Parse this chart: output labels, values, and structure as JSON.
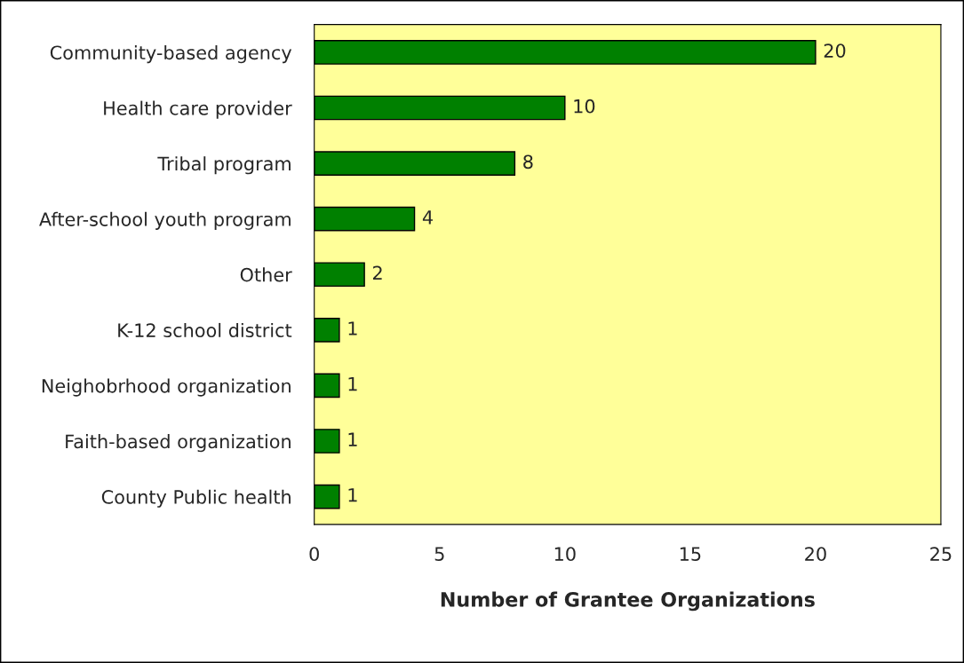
{
  "chart_data": {
    "type": "bar",
    "orientation": "horizontal",
    "xlabel": "Number of Grantee Organizations",
    "categories": [
      "Community-based agency",
      "Health care provider",
      "Tribal program",
      "After-school youth program",
      "Other",
      "K-12 school district",
      "Neighobrhood organization",
      "Faith-based organization",
      "County Public health"
    ],
    "values": [
      20,
      10,
      8,
      4,
      2,
      1,
      1,
      1,
      1
    ],
    "color": "#008000",
    "xlim": [
      0,
      25
    ],
    "xticks": [
      0,
      5,
      10,
      15,
      20,
      25
    ],
    "data_labels": true,
    "grid": false,
    "legend": false
  }
}
